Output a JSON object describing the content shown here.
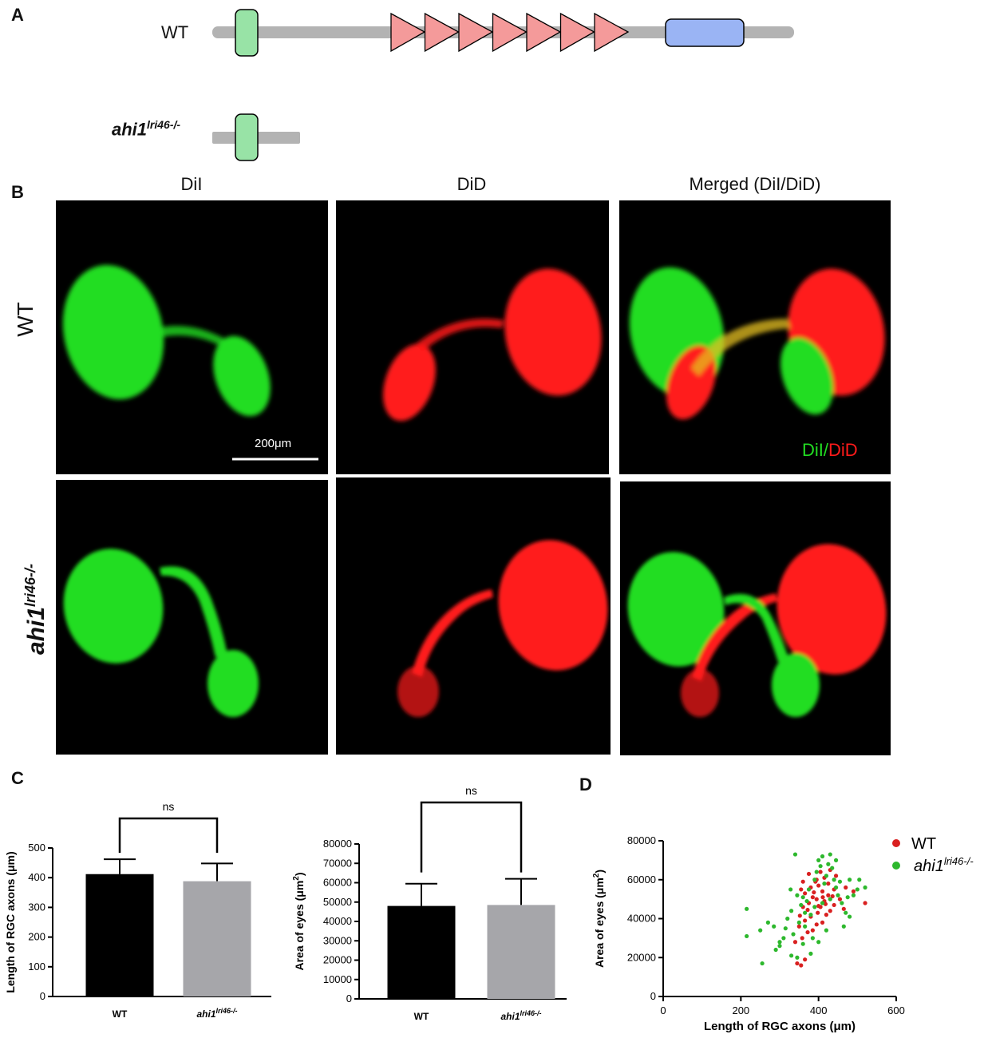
{
  "panels": {
    "A": "A",
    "B": "B",
    "C": "C",
    "D": "D"
  },
  "panel_a": {
    "wt_label": "WT",
    "mutant_label_main": "ahi1",
    "mutant_label_sup": "lri46-/-",
    "triangle_count": 7,
    "colors": {
      "backbone": "#b3b3b3",
      "green_domain": "#98e3a6",
      "triangle": "#f49a9a",
      "blue_domain": "#9ab4f4"
    }
  },
  "panel_b": {
    "col_titles": [
      "DiI",
      "DiD",
      "Merged (DiI/DiD)"
    ],
    "row_wt": "WT",
    "row_mut_main": "ahi1",
    "row_mut_sup": "lri46-/-",
    "scale_bar": "200μm",
    "legend_dii": "DiI",
    "legend_slash": "/",
    "legend_did": "DiD",
    "colors": {
      "green": "#22dd22",
      "red": "#ff1a1a"
    }
  },
  "chart_data": [
    {
      "type": "bar",
      "panel": "C-left",
      "categories": [
        "WT",
        "ahi1lri46-/-"
      ],
      "category_main": [
        "WT",
        "ahi1"
      ],
      "category_sup": [
        "",
        "lri46-/-"
      ],
      "values": [
        412,
        388
      ],
      "errors": [
        50,
        60
      ],
      "colors": [
        "#000000",
        "#a6a6aa"
      ],
      "ylabel": "Length of RGC axons (μm)",
      "ylim": [
        0,
        500
      ],
      "yticks": [
        0,
        100,
        200,
        300,
        400,
        500
      ],
      "significance": "ns"
    },
    {
      "type": "bar",
      "panel": "C-right",
      "categories": [
        "WT",
        "ahi1lri46-/-"
      ],
      "category_main": [
        "WT",
        "ahi1"
      ],
      "category_sup": [
        "",
        "lri46-/-"
      ],
      "values": [
        48000,
        48500
      ],
      "errors": [
        11500,
        13500
      ],
      "colors": [
        "#000000",
        "#a6a6aa"
      ],
      "ylabel_main": "Area of eyes (μm",
      "ylabel_sup": "2",
      "ylabel_end": ")",
      "ylim": [
        0,
        80000
      ],
      "yticks": [
        0,
        10000,
        20000,
        30000,
        40000,
        50000,
        60000,
        70000,
        80000
      ],
      "significance": "ns"
    },
    {
      "type": "scatter",
      "panel": "D",
      "xlabel": "Length of RGC axons (μm)",
      "ylabel_main": "Area of eyes (μm",
      "ylabel_sup": "2",
      "ylabel_end": ")",
      "xlim": [
        0,
        600
      ],
      "ylim": [
        0,
        80000
      ],
      "xticks": [
        0,
        200,
        400,
        600
      ],
      "yticks": [
        0,
        20000,
        40000,
        60000,
        80000
      ],
      "legend": [
        {
          "name": "WT",
          "color": "#d92020"
        },
        {
          "name_main": "ahi1",
          "name_sup": "lri46-/-",
          "color": "#2db82d"
        }
      ],
      "series": [
        {
          "name": "WT",
          "color": "#d92020",
          "points": [
            [
              345,
              17000
            ],
            [
              355,
              16000
            ],
            [
              365,
              19000
            ],
            [
              340,
              28000
            ],
            [
              358,
              30000
            ],
            [
              372,
              33000
            ],
            [
              385,
              34000
            ],
            [
              350,
              36000
            ],
            [
              395,
              37000
            ],
            [
              410,
              38000
            ],
            [
              365,
              39000
            ],
            [
              380,
              41000
            ],
            [
              420,
              42000
            ],
            [
              398,
              43000
            ],
            [
              430,
              44000
            ],
            [
              360,
              46000
            ],
            [
              405,
              46000
            ],
            [
              440,
              47000
            ],
            [
              375,
              48000
            ],
            [
              415,
              49000
            ],
            [
              395,
              50000
            ],
            [
              455,
              50000
            ],
            [
              385,
              51000
            ],
            [
              425,
              52000
            ],
            [
              365,
              53000
            ],
            [
              410,
              54000
            ],
            [
              440,
              55000
            ],
            [
              380,
              56000
            ],
            [
              400,
              57000
            ],
            [
              425,
              58000
            ],
            [
              360,
              59000
            ],
            [
              395,
              60000
            ],
            [
              415,
              61000
            ],
            [
              445,
              62000
            ],
            [
              375,
              63000
            ],
            [
              405,
              64000
            ],
            [
              430,
              65000
            ],
            [
              355,
              55000
            ],
            [
              470,
              56000
            ],
            [
              490,
              54000
            ],
            [
              520,
              48000
            ],
            [
              465,
              45000
            ],
            [
              400,
              46500
            ],
            [
              418,
              47500
            ],
            [
              388,
              53500
            ],
            [
              436,
              51500
            ],
            [
              372,
              44500
            ],
            [
              352,
              41500
            ],
            [
              392,
              59000
            ],
            [
              411,
              51000
            ]
          ]
        },
        {
          "name": "ahi1lri46-/-",
          "color": "#2db82d",
          "points": [
            [
              215,
              45000
            ],
            [
              215,
              31000
            ],
            [
              255,
              17000
            ],
            [
              250,
              34000
            ],
            [
              270,
              38000
            ],
            [
              285,
              36000
            ],
            [
              300,
              26000
            ],
            [
              310,
              30000
            ],
            [
              320,
              40000
            ],
            [
              330,
              44000
            ],
            [
              335,
              32000
            ],
            [
              345,
              20000
            ],
            [
              350,
              38000
            ],
            [
              355,
              47000
            ],
            [
              360,
              51000
            ],
            [
              340,
              73000
            ],
            [
              370,
              49000
            ],
            [
              375,
              55000
            ],
            [
              380,
              42000
            ],
            [
              390,
              60000
            ],
            [
              395,
              64000
            ],
            [
              400,
              70000
            ],
            [
              405,
              67000
            ],
            [
              410,
              72000
            ],
            [
              415,
              58000
            ],
            [
              420,
              62000
            ],
            [
              425,
              68000
            ],
            [
              430,
              73000
            ],
            [
              435,
              66000
            ],
            [
              440,
              60000
            ],
            [
              445,
              56000
            ],
            [
              450,
              52000
            ],
            [
              455,
              59000
            ],
            [
              460,
              48000
            ],
            [
              470,
              43000
            ],
            [
              475,
              51000
            ],
            [
              480,
              60000
            ],
            [
              490,
              52000
            ],
            [
              500,
              55000
            ],
            [
              505,
              60000
            ],
            [
              520,
              56000
            ],
            [
              465,
              36000
            ],
            [
              480,
              41000
            ],
            [
              445,
              70000
            ],
            [
              430,
              50000
            ],
            [
              410,
              48000
            ],
            [
              390,
              46000
            ],
            [
              365,
              36000
            ],
            [
              315,
              35000
            ],
            [
              300,
              28000
            ],
            [
              290,
              24000
            ],
            [
              330,
              21000
            ],
            [
              380,
              22000
            ],
            [
              400,
              28000
            ],
            [
              420,
              34000
            ],
            [
              385,
              30000
            ],
            [
              365,
              43000
            ],
            [
              345,
              52000
            ],
            [
              360,
              27000
            ],
            [
              328,
              55000
            ]
          ]
        }
      ]
    }
  ]
}
